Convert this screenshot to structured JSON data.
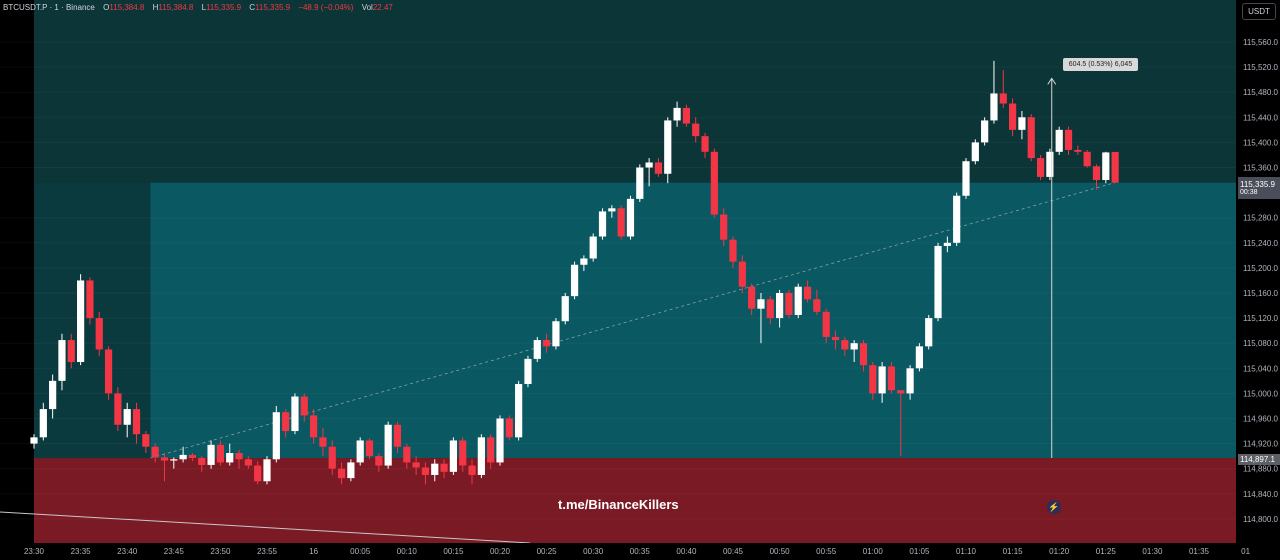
{
  "legend": {
    "symbol": "BTCUSDT.P · 1 · Binance",
    "open_label": "O",
    "open": "115,384.8",
    "high_label": "H",
    "high": "115,384.8",
    "low_label": "L",
    "low": "115,335.9",
    "close_label": "C",
    "close": "115,335.9",
    "change": "−48.9 (−0.04%)",
    "vol_label": "Vol",
    "vol": "22.47"
  },
  "currency_button": "USDT",
  "watermark": "t.me/BinanceKillers",
  "measure": {
    "text": "604.5 (0.53%) 6,045"
  },
  "tags": {
    "last_price": "115,335.9",
    "countdown": "00:38",
    "entry_price": "114,897.1"
  },
  "icons": {
    "bolt": "lightning-icon"
  },
  "colors": {
    "up": "#ffffff",
    "down": "#f23645",
    "profit_zone": "#0a5862",
    "stop_zone": "#7a1a24",
    "upper_zone": "#0c3538"
  },
  "chart_data": {
    "type": "candlestick",
    "title": "",
    "xlabel": "",
    "ylabel": "",
    "ylim": [
      114770,
      115580
    ],
    "y_ticks": [
      115560,
      115520,
      115480,
      115440,
      115400,
      115360,
      115280,
      115240,
      115200,
      115160,
      115120,
      115080,
      115040,
      115000,
      114960,
      114920,
      114880,
      114840,
      114800
    ],
    "y_tick_labels": [
      "115,560.0",
      "115,520.0",
      "115,480.0",
      "115,440.0",
      "115,400.0",
      "115,360.0",
      "115,280.0",
      "115,240.0",
      "115,200.0",
      "115,160.0",
      "115,120.0",
      "115,080.0",
      "115,040.0",
      "115,000.0",
      "114,960.0",
      "114,920.0",
      "114,880.0",
      "114,840.0",
      "114,800.0"
    ],
    "x_ticks": [
      {
        "t": 0,
        "label": "23:30"
      },
      {
        "t": 5,
        "label": "23:35"
      },
      {
        "t": 10,
        "label": "23:40"
      },
      {
        "t": 15,
        "label": "23:45"
      },
      {
        "t": 20,
        "label": "23:50"
      },
      {
        "t": 25,
        "label": "23:55"
      },
      {
        "t": 30,
        "label": "16"
      },
      {
        "t": 35,
        "label": "00:05"
      },
      {
        "t": 40,
        "label": "00:10"
      },
      {
        "t": 45,
        "label": "00:15"
      },
      {
        "t": 50,
        "label": "00:20"
      },
      {
        "t": 55,
        "label": "00:25"
      },
      {
        "t": 60,
        "label": "00:30"
      },
      {
        "t": 65,
        "label": "00:35"
      },
      {
        "t": 70,
        "label": "00:40"
      },
      {
        "t": 75,
        "label": "00:45"
      },
      {
        "t": 80,
        "label": "00:50"
      },
      {
        "t": 85,
        "label": "00:55"
      },
      {
        "t": 90,
        "label": "01:00"
      },
      {
        "t": 95,
        "label": "01:05"
      },
      {
        "t": 100,
        "label": "01:10"
      },
      {
        "t": 105,
        "label": "01:15"
      },
      {
        "t": 110,
        "label": "01:20"
      },
      {
        "t": 115,
        "label": "01:25"
      },
      {
        "t": 120,
        "label": "01:30"
      },
      {
        "t": 125,
        "label": "01:35"
      },
      {
        "t": 130,
        "label": "01"
      }
    ],
    "trade_box": {
      "start_t": 12.5,
      "end_t": 130.5,
      "entry": 114897,
      "target": 115336,
      "stop": 114780
    },
    "measure": {
      "t": 109.2,
      "from": 114897,
      "to": 115502
    },
    "ohlc": [
      [
        114920,
        114935,
        114912,
        114930
      ],
      [
        114930,
        114985,
        114925,
        114975
      ],
      [
        114975,
        115030,
        114960,
        115020
      ],
      [
        115020,
        115095,
        115005,
        115085
      ],
      [
        115085,
        115095,
        115040,
        115050
      ],
      [
        115050,
        115190,
        115045,
        115180
      ],
      [
        115180,
        115185,
        115110,
        115120
      ],
      [
        115120,
        115130,
        115060,
        115070
      ],
      [
        115070,
        115075,
        114990,
        115000
      ],
      [
        115000,
        115010,
        114940,
        114950
      ],
      [
        114950,
        114985,
        114930,
        114975
      ],
      [
        114975,
        114985,
        114920,
        114935
      ],
      [
        114935,
        114940,
        114905,
        114915
      ],
      [
        114915,
        114920,
        114890,
        114898
      ],
      [
        114898,
        114905,
        114860,
        114893
      ],
      [
        114893,
        114898,
        114880,
        114895
      ],
      [
        114895,
        114915,
        114890,
        114902
      ],
      [
        114902,
        114905,
        114892,
        114897
      ],
      [
        114897,
        114900,
        114875,
        114886
      ],
      [
        114886,
        114925,
        114880,
        114918
      ],
      [
        114918,
        114925,
        114885,
        114890
      ],
      [
        114890,
        114920,
        114885,
        114905
      ],
      [
        114905,
        114910,
        114880,
        114895
      ],
      [
        114895,
        114900,
        114880,
        114885
      ],
      [
        114885,
        114892,
        114855,
        114860
      ],
      [
        114860,
        114900,
        114855,
        114895
      ],
      [
        114895,
        114980,
        114890,
        114970
      ],
      [
        114970,
        114975,
        114930,
        114940
      ],
      [
        114940,
        115000,
        114935,
        114995
      ],
      [
        114995,
        115000,
        114955,
        114965
      ],
      [
        114965,
        114975,
        114920,
        114930
      ],
      [
        114930,
        114945,
        114900,
        114915
      ],
      [
        114915,
        114925,
        114870,
        114880
      ],
      [
        114880,
        114890,
        114855,
        114865
      ],
      [
        114865,
        114895,
        114860,
        114890
      ],
      [
        114890,
        114930,
        114885,
        114925
      ],
      [
        114925,
        114928,
        114895,
        114900
      ],
      [
        114900,
        114905,
        114875,
        114885
      ],
      [
        114885,
        114955,
        114880,
        114950
      ],
      [
        114950,
        114955,
        114905,
        114915
      ],
      [
        114915,
        114920,
        114880,
        114890
      ],
      [
        114890,
        114900,
        114870,
        114882
      ],
      [
        114882,
        114890,
        114855,
        114870
      ],
      [
        114870,
        114895,
        114860,
        114888
      ],
      [
        114888,
        114895,
        114865,
        114875
      ],
      [
        114875,
        114930,
        114870,
        114925
      ],
      [
        114925,
        114930,
        114875,
        114885
      ],
      [
        114885,
        114895,
        114855,
        114870
      ],
      [
        114870,
        114935,
        114865,
        114930
      ],
      [
        114930,
        114935,
        114880,
        114890
      ],
      [
        114890,
        114965,
        114885,
        114960
      ],
      [
        114960,
        114965,
        114925,
        114930
      ],
      [
        114930,
        115020,
        114925,
        115015
      ],
      [
        115015,
        115060,
        115010,
        115055
      ],
      [
        115055,
        115090,
        115050,
        115085
      ],
      [
        115085,
        115095,
        115065,
        115075
      ],
      [
        115075,
        115120,
        115070,
        115115
      ],
      [
        115115,
        115160,
        115110,
        115155
      ],
      [
        115155,
        115210,
        115150,
        115205
      ],
      [
        115205,
        115220,
        115195,
        115215
      ],
      [
        115215,
        115255,
        115210,
        115250
      ],
      [
        115250,
        115295,
        115245,
        115290
      ],
      [
        115290,
        115300,
        115280,
        115295
      ],
      [
        115295,
        115300,
        115245,
        115250
      ],
      [
        115250,
        115315,
        115245,
        115310
      ],
      [
        115310,
        115365,
        115305,
        115360
      ],
      [
        115360,
        115375,
        115330,
        115368
      ],
      [
        115368,
        115375,
        115345,
        115350
      ],
      [
        115350,
        115440,
        115335,
        115435
      ],
      [
        115435,
        115465,
        115425,
        115455
      ],
      [
        115455,
        115460,
        115425,
        115430
      ],
      [
        115430,
        115440,
        115400,
        115410
      ],
      [
        115410,
        115415,
        115375,
        115385
      ],
      [
        115385,
        115390,
        115280,
        115285
      ],
      [
        115285,
        115295,
        115235,
        115245
      ],
      [
        115245,
        115250,
        115200,
        115210
      ],
      [
        115210,
        115220,
        115160,
        115170
      ],
      [
        115170,
        115175,
        115125,
        115135
      ],
      [
        115135,
        115160,
        115080,
        115150
      ],
      [
        115150,
        115155,
        115110,
        115120
      ],
      [
        115120,
        115165,
        115105,
        115160
      ],
      [
        115160,
        115165,
        115120,
        115125
      ],
      [
        115125,
        115175,
        115120,
        115170
      ],
      [
        115170,
        115180,
        115145,
        115150
      ],
      [
        115150,
        115165,
        115125,
        115130
      ],
      [
        115130,
        115135,
        115080,
        115090
      ],
      [
        115090,
        115100,
        115070,
        115085
      ],
      [
        115085,
        115090,
        115060,
        115070
      ],
      [
        115070,
        115085,
        115050,
        115080
      ],
      [
        115080,
        115085,
        115035,
        115045
      ],
      [
        115045,
        115050,
        114990,
        115000
      ],
      [
        115000,
        115050,
        114985,
        115043
      ],
      [
        115043,
        115050,
        115000,
        115005
      ],
      [
        115005,
        115005,
        114900,
        115000
      ],
      [
        115000,
        115045,
        114990,
        115040
      ],
      [
        115040,
        115080,
        115035,
        115075
      ],
      [
        115075,
        115125,
        115070,
        115120
      ],
      [
        115120,
        115240,
        115115,
        115235
      ],
      [
        115235,
        115250,
        115225,
        115240
      ],
      [
        115240,
        115320,
        115235,
        115315
      ],
      [
        115315,
        115375,
        115310,
        115370
      ],
      [
        115370,
        115405,
        115365,
        115400
      ],
      [
        115400,
        115440,
        115395,
        115435
      ],
      [
        115435,
        115530,
        115430,
        115478
      ],
      [
        115478,
        115515,
        115455,
        115462
      ],
      [
        115462,
        115470,
        115410,
        115420
      ],
      [
        115420,
        115450,
        115405,
        115440
      ],
      [
        115440,
        115445,
        115370,
        115375
      ],
      [
        115375,
        115380,
        115340,
        115345
      ],
      [
        115345,
        115390,
        115340,
        115385
      ],
      [
        115385,
        115425,
        115380,
        115420
      ],
      [
        115420,
        115425,
        115380,
        115388
      ],
      [
        115388,
        115395,
        115380,
        115385
      ],
      [
        115385,
        115388,
        115360,
        115362
      ],
      [
        115362,
        115365,
        115325,
        115340
      ],
      [
        115340,
        115385,
        115335,
        115384
      ],
      [
        115384.8,
        115384.8,
        115335.9,
        115335.9
      ]
    ]
  }
}
